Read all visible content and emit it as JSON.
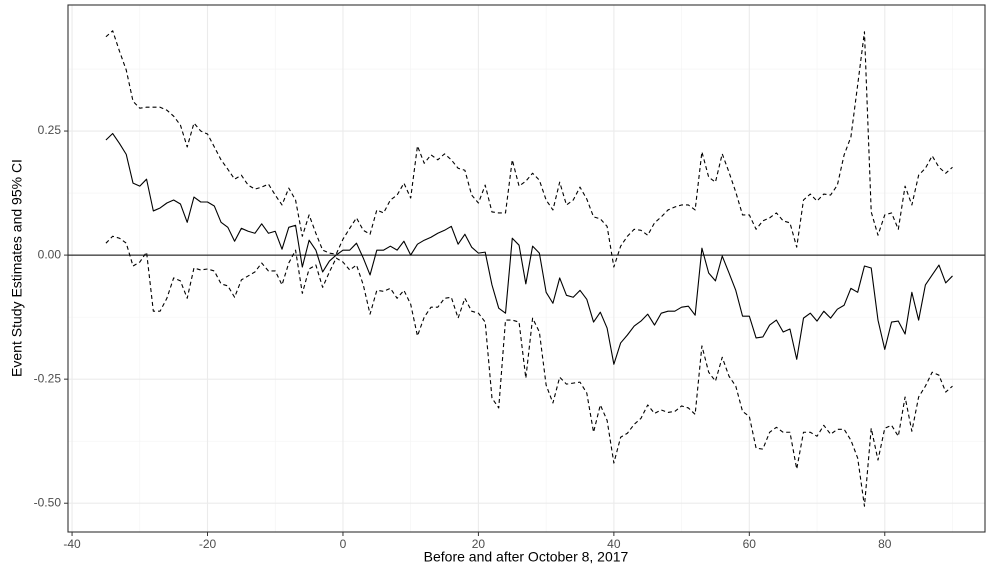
{
  "chart_data": {
    "type": "line",
    "x_label": "Before and after October 8, 2017",
    "y_label": "Event Study Estimates and 95% CI",
    "x": [
      -35,
      -34,
      -33,
      -32,
      -31,
      -30,
      -29,
      -28,
      -27,
      -26,
      -25,
      -24,
      -23,
      -22,
      -21,
      -20,
      -19,
      -18,
      -17,
      -16,
      -15,
      -14,
      -13,
      -12,
      -11,
      -10,
      -9,
      -8,
      -7,
      -6,
      -5,
      -4,
      -3,
      -2,
      -1,
      0,
      1,
      2,
      3,
      4,
      5,
      6,
      7,
      8,
      9,
      10,
      11,
      12,
      13,
      14,
      15,
      16,
      17,
      18,
      19,
      20,
      21,
      22,
      23,
      24,
      25,
      26,
      27,
      28,
      29,
      30,
      31,
      32,
      33,
      34,
      35,
      36,
      37,
      38,
      39,
      40,
      41,
      42,
      43,
      44,
      45,
      46,
      47,
      48,
      49,
      50,
      51,
      52,
      53,
      54,
      55,
      56,
      57,
      58,
      59,
      60,
      61,
      62,
      63,
      64,
      65,
      66,
      67,
      68,
      69,
      70,
      71,
      72,
      73,
      74,
      75,
      76,
      77,
      78,
      79,
      80,
      81,
      82,
      83,
      84,
      85,
      86,
      87,
      88,
      89,
      90
    ],
    "series": [
      {
        "color": "#000000",
        "dash": false,
        "values": [
          0.232,
          0.245,
          0.225,
          0.203,
          0.145,
          0.139,
          0.153,
          0.089,
          0.095,
          0.105,
          0.111,
          0.103,
          0.066,
          0.117,
          0.107,
          0.107,
          0.099,
          0.066,
          0.056,
          0.028,
          0.054,
          0.048,
          0.044,
          0.063,
          0.044,
          0.048,
          0.012,
          0.056,
          0.06,
          -0.024,
          0.03,
          0.01,
          -0.034,
          -0.012,
          0.0,
          0.01,
          0.01,
          0.024,
          -0.006,
          -0.04,
          0.01,
          0.01,
          0.018,
          0.01,
          0.028,
          0.0,
          0.022,
          0.03,
          0.036,
          0.044,
          0.05,
          0.058,
          0.022,
          0.042,
          0.016,
          0.004,
          0.006,
          -0.06,
          -0.107,
          -0.117,
          0.034,
          0.02,
          -0.058,
          0.018,
          0.004,
          -0.075,
          -0.097,
          -0.046,
          -0.081,
          -0.085,
          -0.071,
          -0.089,
          -0.135,
          -0.115,
          -0.147,
          -0.22,
          -0.177,
          -0.161,
          -0.143,
          -0.133,
          -0.119,
          -0.141,
          -0.117,
          -0.113,
          -0.113,
          -0.105,
          -0.103,
          -0.121,
          0.014,
          -0.036,
          -0.052,
          -0.002,
          -0.036,
          -0.071,
          -0.123,
          -0.123,
          -0.167,
          -0.165,
          -0.141,
          -0.131,
          -0.155,
          -0.149,
          -0.21,
          -0.127,
          -0.117,
          -0.133,
          -0.113,
          -0.127,
          -0.109,
          -0.101,
          -0.067,
          -0.075,
          -0.022,
          -0.026,
          -0.131,
          -0.19,
          -0.135,
          -0.133,
          -0.159,
          -0.075,
          -0.131,
          -0.06,
          -0.04,
          -0.02,
          -0.056,
          -0.042
        ]
      },
      {
        "color": "#000000",
        "dash": true,
        "values": [
          0.44,
          0.452,
          0.411,
          0.373,
          0.31,
          0.296,
          0.298,
          0.298,
          0.298,
          0.292,
          0.28,
          0.262,
          0.218,
          0.266,
          0.25,
          0.244,
          0.218,
          0.192,
          0.173,
          0.153,
          0.161,
          0.141,
          0.133,
          0.137,
          0.143,
          0.121,
          0.101,
          0.135,
          0.111,
          0.038,
          0.081,
          0.044,
          0.01,
          0.004,
          0.002,
          0.032,
          0.054,
          0.075,
          0.05,
          0.042,
          0.091,
          0.085,
          0.111,
          0.121,
          0.145,
          0.115,
          0.22,
          0.185,
          0.202,
          0.192,
          0.204,
          0.192,
          0.175,
          0.171,
          0.121,
          0.105,
          0.141,
          0.087,
          0.085,
          0.085,
          0.192,
          0.139,
          0.149,
          0.165,
          0.151,
          0.111,
          0.091,
          0.147,
          0.101,
          0.111,
          0.137,
          0.113,
          0.077,
          0.073,
          0.058,
          -0.024,
          0.018,
          0.038,
          0.052,
          0.05,
          0.04,
          0.065,
          0.077,
          0.091,
          0.097,
          0.101,
          0.101,
          0.091,
          0.208,
          0.157,
          0.147,
          0.204,
          0.167,
          0.127,
          0.081,
          0.081,
          0.052,
          0.069,
          0.075,
          0.085,
          0.069,
          0.065,
          0.016,
          0.111,
          0.123,
          0.109,
          0.123,
          0.121,
          0.141,
          0.202,
          0.238,
          0.343,
          0.45,
          0.087,
          0.04,
          0.081,
          0.085,
          0.052,
          0.139,
          0.101,
          0.161,
          0.175,
          0.2,
          0.177,
          0.165,
          0.177
        ]
      },
      {
        "color": "#000000",
        "dash": true,
        "values": [
          0.024,
          0.038,
          0.034,
          0.024,
          -0.022,
          -0.014,
          0.006,
          -0.113,
          -0.113,
          -0.087,
          -0.046,
          -0.052,
          -0.087,
          -0.026,
          -0.03,
          -0.028,
          -0.032,
          -0.058,
          -0.062,
          -0.085,
          -0.05,
          -0.042,
          -0.034,
          -0.016,
          -0.032,
          -0.032,
          -0.06,
          -0.016,
          0.01,
          -0.077,
          -0.028,
          -0.02,
          -0.065,
          -0.034,
          -0.006,
          -0.014,
          -0.03,
          -0.02,
          -0.06,
          -0.119,
          -0.071,
          -0.073,
          -0.067,
          -0.087,
          -0.071,
          -0.099,
          -0.163,
          -0.125,
          -0.105,
          -0.105,
          -0.087,
          -0.085,
          -0.127,
          -0.087,
          -0.113,
          -0.117,
          -0.135,
          -0.288,
          -0.308,
          -0.131,
          -0.131,
          -0.135,
          -0.248,
          -0.127,
          -0.155,
          -0.262,
          -0.298,
          -0.246,
          -0.26,
          -0.258,
          -0.256,
          -0.278,
          -0.357,
          -0.302,
          -0.333,
          -0.419,
          -0.367,
          -0.359,
          -0.341,
          -0.329,
          -0.302,
          -0.319,
          -0.312,
          -0.317,
          -0.315,
          -0.304,
          -0.308,
          -0.321,
          -0.183,
          -0.236,
          -0.254,
          -0.206,
          -0.244,
          -0.264,
          -0.315,
          -0.325,
          -0.389,
          -0.391,
          -0.357,
          -0.347,
          -0.357,
          -0.357,
          -0.431,
          -0.357,
          -0.357,
          -0.365,
          -0.343,
          -0.361,
          -0.351,
          -0.351,
          -0.373,
          -0.409,
          -0.506,
          -0.349,
          -0.413,
          -0.349,
          -0.343,
          -0.365,
          -0.286,
          -0.355,
          -0.286,
          -0.264,
          -0.236,
          -0.242,
          -0.276,
          -0.264
        ]
      }
    ],
    "hline": 0,
    "xlim": [
      -40.6,
      94.8
    ],
    "xticks": [
      -40,
      -20,
      0,
      20,
      40,
      60,
      80
    ],
    "ylim": [
      -0.558,
      0.504
    ],
    "yticks": [
      {
        "value": -0.5,
        "label": "-0.50"
      },
      -0.25,
      {
        "value": 0,
        "label": "0.00"
      },
      0.25
    ],
    "grid": true
  }
}
